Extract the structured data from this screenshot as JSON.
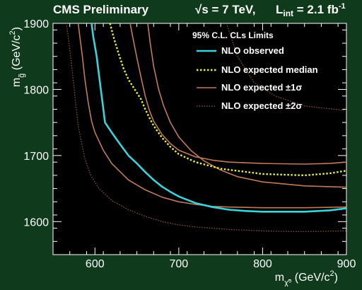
{
  "header": {
    "experiment": "CMS Preliminary",
    "energy_text": "√s = 7 TeV,",
    "lumi_prefix": "L",
    "lumi_sub": "int",
    "lumi_value": " = 2.1 fb",
    "lumi_sup": "-1"
  },
  "colors": {
    "background": "#103a1c",
    "plot_area": "#000000",
    "observed": "#39d3dc",
    "expected_median": "#e6ef45",
    "expected_1sigma": "#c07a58",
    "expected_2sigma": "#9a5a3c"
  },
  "chart_data": {
    "type": "line",
    "title": "",
    "xlabel_parts": {
      "main": "m",
      "sub": "χ̃⁰",
      "tail": " (GeV/c",
      "sup": "2",
      "end": ")"
    },
    "ylabel_parts": {
      "main": "m",
      "sub": "g̃",
      "tail": " (GeV/c",
      "sup": "2",
      "end": ")"
    },
    "xlim": [
      550,
      900
    ],
    "ylim": [
      1550,
      1900
    ],
    "xticks": [
      600,
      700,
      800,
      900
    ],
    "yticks": [
      1600,
      1700,
      1800,
      1900
    ],
    "grid": false,
    "legend": {
      "position": "top-right",
      "title": "95% C.L. CLs Limits"
    },
    "series": [
      {
        "name": "NLO observed",
        "style": "solid-thick",
        "color_key": "observed",
        "x": [
          596,
          598,
          602,
          606,
          609,
          612,
          620,
          630,
          640,
          650,
          660,
          670,
          680,
          690,
          700,
          720,
          740,
          760,
          780,
          800,
          850,
          880,
          900
        ],
        "y": [
          1900,
          1880,
          1850,
          1810,
          1780,
          1750,
          1735,
          1717,
          1700,
          1688,
          1675,
          1663,
          1653,
          1645,
          1638,
          1628,
          1622,
          1618,
          1616,
          1615,
          1615,
          1617,
          1620
        ]
      },
      {
        "name": "NLO expected median",
        "style": "dotted",
        "color_key": "expected_median",
        "x": [
          618,
          622,
          628,
          634,
          640,
          645,
          650,
          655,
          660,
          665,
          670,
          680,
          690,
          700,
          720,
          750,
          800,
          850,
          880,
          900
        ],
        "y": [
          1900,
          1880,
          1855,
          1832,
          1815,
          1805,
          1795,
          1785,
          1770,
          1757,
          1745,
          1727,
          1713,
          1702,
          1690,
          1680,
          1672,
          1670,
          1673,
          1677
        ]
      },
      {
        "name": "NLO expected ±1σ",
        "style": "solid-thin",
        "color_key": "expected_1sigma",
        "x": [
          642,
          645,
          650,
          655,
          660,
          665,
          670,
          680,
          690,
          700,
          720,
          740,
          760,
          800,
          850,
          880,
          900
        ],
        "y": [
          1900,
          1880,
          1848,
          1818,
          1790,
          1768,
          1752,
          1732,
          1718,
          1708,
          1698,
          1693,
          1690,
          1688,
          1687,
          1688,
          1690
        ]
      },
      {
        "name": "NLO expected ±1σ lower",
        "style": "solid-thin",
        "color_key": "expected_1sigma",
        "x": [
          580,
          582,
          585,
          588,
          592,
          596,
          600,
          610,
          620,
          640,
          660,
          680,
          700,
          720,
          740,
          760,
          800,
          850,
          900
        ],
        "y": [
          1900,
          1880,
          1850,
          1815,
          1780,
          1752,
          1735,
          1708,
          1688,
          1663,
          1648,
          1637,
          1630,
          1626,
          1623,
          1622,
          1621,
          1621,
          1622
        ]
      },
      {
        "name": "NLO expected ±1σ upper",
        "style": "solid-thin",
        "color_key": "expected_1sigma",
        "x": [
          663,
          666,
          670,
          676,
          682,
          690,
          700,
          715,
          730,
          750,
          770,
          800,
          850,
          900
        ],
        "y": [
          1900,
          1870,
          1835,
          1800,
          1775,
          1750,
          1728,
          1707,
          1692,
          1678,
          1668,
          1660,
          1654,
          1652
        ]
      },
      {
        "name": "NLO expected ±2σ",
        "style": "dotted-thin",
        "color_key": "expected_2sigma",
        "x": [
          566,
          568,
          571,
          574,
          577,
          580,
          584,
          588,
          595,
          605,
          620,
          640,
          660,
          680,
          700,
          720,
          740,
          760,
          780,
          800,
          830,
          860,
          900
        ],
        "y": [
          1900,
          1880,
          1850,
          1815,
          1780,
          1745,
          1720,
          1695,
          1670,
          1650,
          1632,
          1618,
          1608,
          1600,
          1595,
          1592,
          1590,
          1588,
          1587,
          1586,
          1585,
          1585,
          1586
        ]
      },
      {
        "name": "NLO expected ±2σ upper",
        "style": "dotted-thin",
        "color_key": "expected_2sigma",
        "x": [
          757,
          770,
          790,
          815,
          850,
          900
        ],
        "y": [
          1900,
          1850,
          1810,
          1790,
          1775,
          1768
        ]
      }
    ],
    "legend_entries": [
      {
        "label": "NLO observed",
        "series_index": 0
      },
      {
        "label": "NLO expected median",
        "series_index": 1
      },
      {
        "label": "NLO expected",
        "suffix": "±1σ",
        "series_index": 2
      },
      {
        "label": "NLO expected",
        "suffix": "±2σ",
        "series_index": 5
      }
    ]
  }
}
